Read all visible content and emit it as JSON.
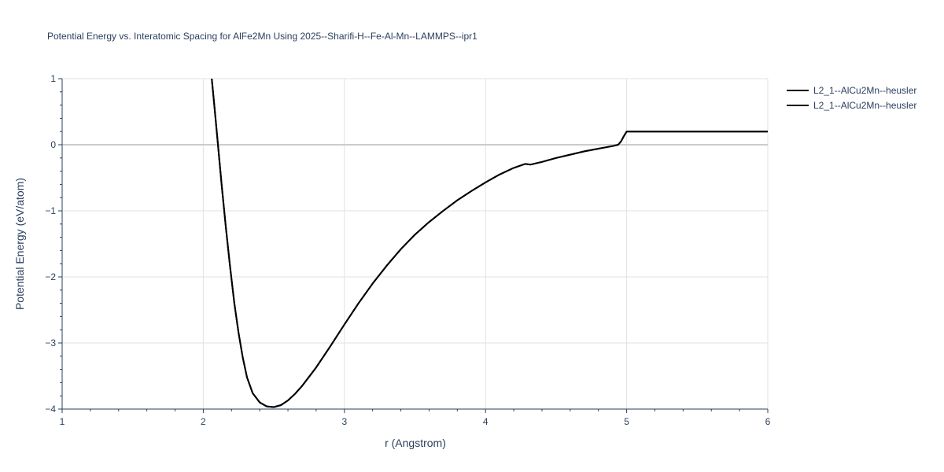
{
  "chart_data": {
    "type": "line",
    "title": "Potential Energy vs. Interatomic Spacing for AlFe2Mn Using 2025--Sharifi-H--Fe-Al-Mn--LAMMPS--ipr1",
    "xlabel": "r (Angstrom)",
    "ylabel": "Potential Energy (eV/atom)",
    "xlim": [
      1,
      6
    ],
    "ylim": [
      -4,
      1
    ],
    "grid": true,
    "legend_position": "top-right",
    "x_ticks": [
      "1",
      "2",
      "3",
      "4",
      "5",
      "6"
    ],
    "y_ticks": [
      "1",
      "0",
      "−1",
      "−2",
      "−3",
      "−4"
    ],
    "y_tick_values": [
      1,
      0,
      -1,
      -2,
      -3,
      -4
    ],
    "x_tick_values": [
      1,
      2,
      3,
      4,
      5,
      6
    ],
    "line_color": "#000000",
    "series": [
      {
        "name": "L2_1--AlCu2Mn--heusler",
        "x": [
          2.06,
          2.08,
          2.1,
          2.13,
          2.16,
          2.19,
          2.22,
          2.25,
          2.28,
          2.31,
          2.35,
          2.4,
          2.45,
          2.5,
          2.55,
          2.6,
          2.65,
          2.7,
          2.8,
          2.9,
          3.0,
          3.1,
          3.2,
          3.3,
          3.4,
          3.5,
          3.6,
          3.7,
          3.8,
          3.9,
          4.0,
          4.1,
          4.2,
          4.28,
          4.32,
          4.4,
          4.5,
          4.6,
          4.7,
          4.8,
          4.9,
          4.94,
          4.96,
          4.98,
          5.0,
          5.1,
          5.5,
          6.0
        ],
        "y": [
          1.0,
          0.55,
          0.1,
          -0.6,
          -1.25,
          -1.85,
          -2.4,
          -2.85,
          -3.22,
          -3.52,
          -3.76,
          -3.9,
          -3.96,
          -3.97,
          -3.94,
          -3.87,
          -3.77,
          -3.65,
          -3.37,
          -3.05,
          -2.72,
          -2.4,
          -2.1,
          -1.83,
          -1.58,
          -1.36,
          -1.17,
          -1.0,
          -0.84,
          -0.7,
          -0.57,
          -0.45,
          -0.35,
          -0.29,
          -0.3,
          -0.26,
          -0.2,
          -0.15,
          -0.1,
          -0.06,
          -0.02,
          0.0,
          0.05,
          0.13,
          0.2,
          0.2,
          0.2,
          0.2
        ]
      },
      {
        "name": "L2_1--AlCu2Mn--heusler",
        "x": [
          2.06,
          2.08,
          2.1,
          2.13,
          2.16,
          2.19,
          2.22,
          2.25,
          2.28,
          2.31,
          2.35,
          2.4,
          2.45,
          2.5,
          2.55,
          2.6,
          2.65,
          2.7,
          2.8,
          2.9,
          3.0,
          3.1,
          3.2,
          3.3,
          3.4,
          3.5,
          3.6,
          3.7,
          3.8,
          3.9,
          4.0,
          4.1,
          4.2,
          4.28,
          4.32,
          4.4,
          4.5,
          4.6,
          4.7,
          4.8,
          4.9,
          4.94,
          4.96,
          4.98,
          5.0,
          5.1,
          5.5,
          6.0
        ],
        "y": [
          1.0,
          0.55,
          0.1,
          -0.6,
          -1.25,
          -1.85,
          -2.4,
          -2.85,
          -3.22,
          -3.52,
          -3.76,
          -3.9,
          -3.96,
          -3.97,
          -3.94,
          -3.87,
          -3.77,
          -3.65,
          -3.37,
          -3.05,
          -2.72,
          -2.4,
          -2.1,
          -1.83,
          -1.58,
          -1.36,
          -1.17,
          -1.0,
          -0.84,
          -0.7,
          -0.57,
          -0.45,
          -0.35,
          -0.29,
          -0.3,
          -0.26,
          -0.2,
          -0.15,
          -0.1,
          -0.06,
          -0.02,
          0.0,
          0.05,
          0.13,
          0.2,
          0.2,
          0.2,
          0.2
        ]
      }
    ]
  }
}
